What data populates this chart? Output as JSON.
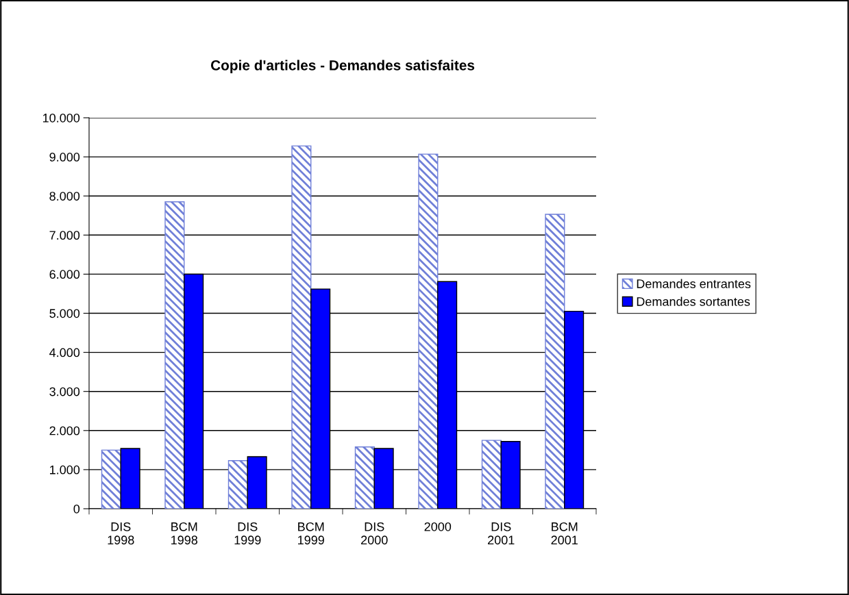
{
  "chart_data": {
    "type": "bar",
    "title": "Copie d'articles - Demandes satisfaites",
    "categories": [
      "DIS\n1998",
      "BCM\n1998",
      "DIS\n1999",
      "BCM\n1999",
      "DIS\n2000",
      "2000",
      "DIS\n2001",
      "BCM\n2001"
    ],
    "series": [
      {
        "name": "Demandes entrantes",
        "color": "#6f7fd8",
        "values": [
          1500,
          7850,
          1230,
          9280,
          1580,
          9070,
          1750,
          7530
        ]
      },
      {
        "name": "Demandes sortantes",
        "color": "#0000ff",
        "values": [
          1540,
          6000,
          1330,
          5620,
          1540,
          5810,
          1720,
          5050
        ]
      }
    ],
    "ylim": [
      0,
      10000
    ],
    "yticks": [
      0,
      {
        "value": 1000,
        "label": "1.000"
      },
      {
        "value": 2000,
        "label": "2.000"
      },
      {
        "value": 3000,
        "label": "3.000"
      },
      {
        "value": 4000,
        "label": "4.000"
      },
      {
        "value": 5000,
        "label": "5.000"
      },
      {
        "value": 6000,
        "label": "6.000"
      },
      {
        "value": 7000,
        "label": "7.000"
      },
      {
        "value": 8000,
        "label": "8.000"
      },
      {
        "value": 9000,
        "label": "9.000"
      },
      {
        "value": 10000,
        "label": "10.000"
      }
    ],
    "grid": "y",
    "legend": "right"
  }
}
